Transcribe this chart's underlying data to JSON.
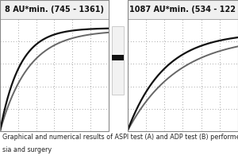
{
  "title_left": "8 AU*min. (745 - 1361)",
  "title_right": "1087 AU*min. (534 - 122",
  "caption_line1": "Graphical and numerical results of ASPI test (A) and ADP test (B) performed before subarachn",
  "caption_line2": "sia and surgery",
  "bg_color": "#c0c0c0",
  "grid_dot_color": "#888888",
  "panel_bg": "#c0c0c0",
  "header_bg": "#f0f0f0",
  "header_border": "#888888",
  "line_color_dark": "#111111",
  "line_color_gray": "#666666",
  "mid_bg": "#f5f5f5",
  "strip_bg": "#e0e0e0",
  "strip_mark_color": "#111111",
  "title_fontsize": 7.0,
  "caption_fontsize": 5.8,
  "figwidth": 3.0,
  "figheight": 2.0,
  "dpi": 100
}
